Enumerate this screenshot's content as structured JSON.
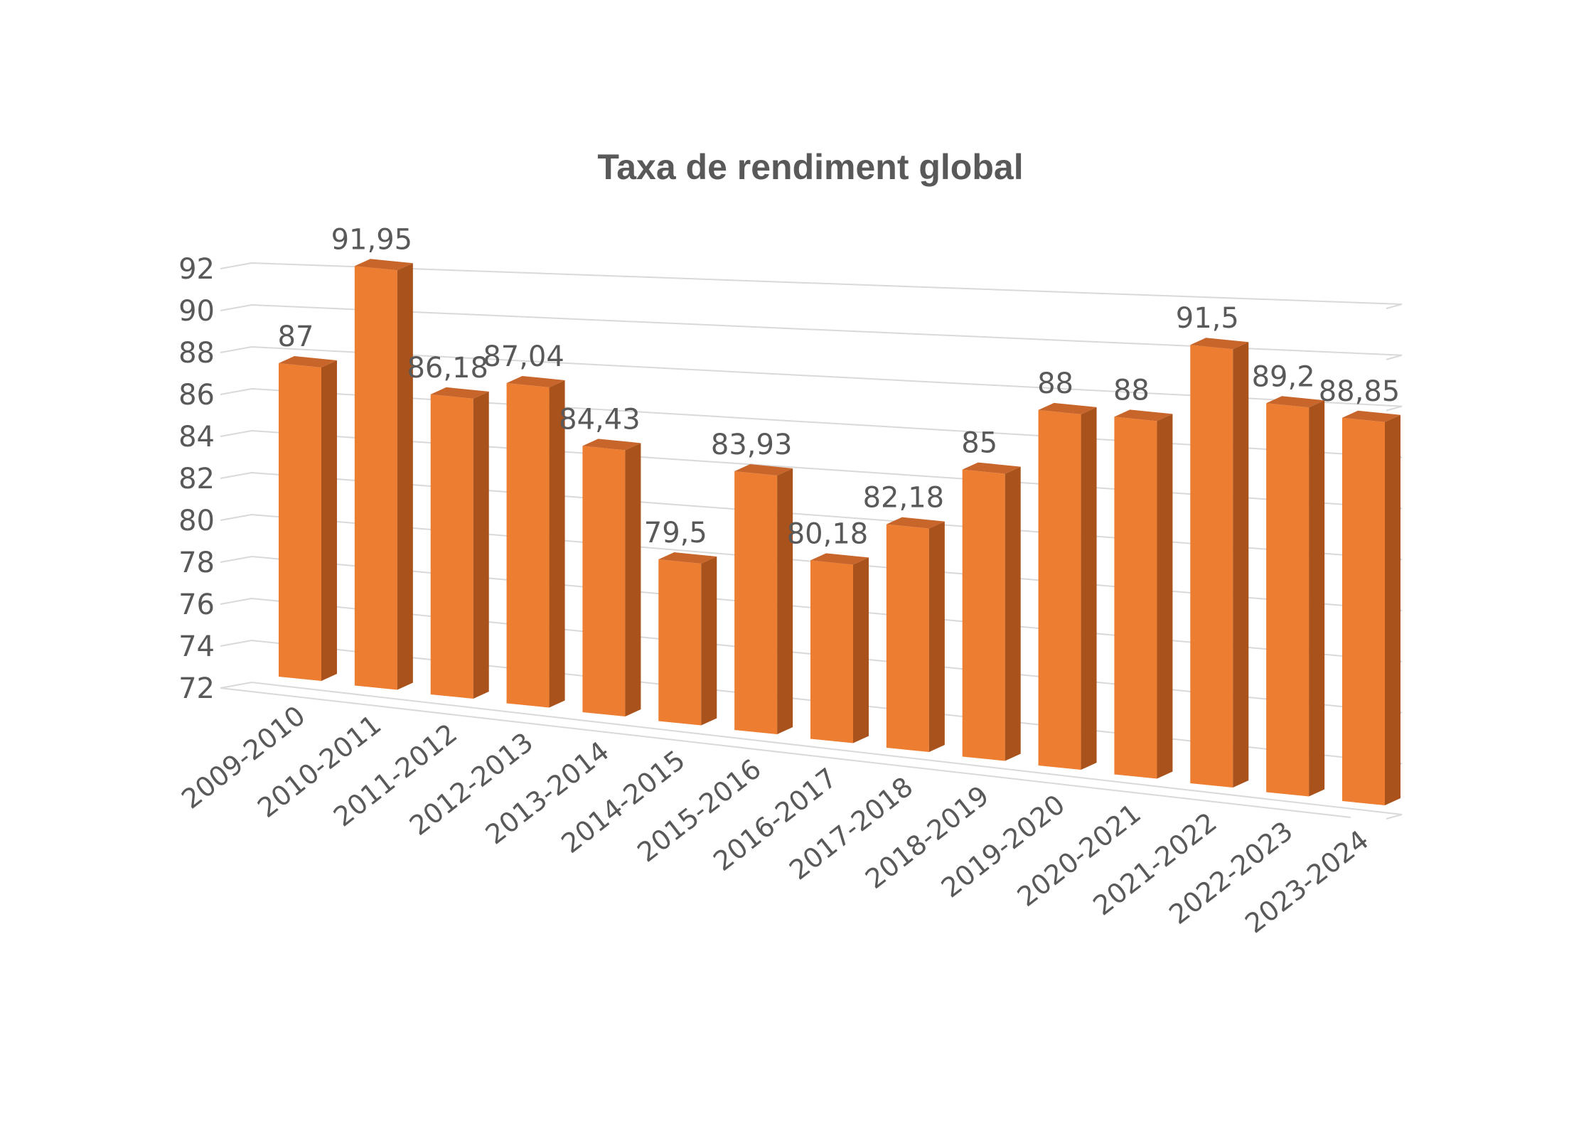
{
  "chart_data": {
    "type": "bar",
    "title": "Taxa de rendiment global",
    "categories": [
      "2009-2010",
      "2010-2011",
      "2011-2012",
      "2012-2013",
      "2013-2014",
      "2014-2015",
      "2015-2016",
      "2016-2017",
      "2017-2018",
      "2018-2019",
      "2019-2020",
      "2020-2021",
      "2021-2022",
      "2022-2023",
      "2023-2024"
    ],
    "values": [
      87,
      91.95,
      86.18,
      87.04,
      84.43,
      79.5,
      83.93,
      80.18,
      82.18,
      85,
      88,
      88,
      91.5,
      89.2,
      88.85
    ],
    "data_labels": [
      "87",
      "91,95",
      "86,18",
      "87,04",
      "84,43",
      "79,5",
      "83,93",
      "80,18",
      "82,18",
      "85",
      "88",
      "88",
      "91,5",
      "89,2",
      "88,85"
    ],
    "y_ticks": [
      "72",
      "74",
      "76",
      "78",
      "80",
      "82",
      "84",
      "86",
      "88",
      "90",
      "92"
    ],
    "ylim": [
      72,
      92
    ],
    "grid": true,
    "legend": "none",
    "three_d": true,
    "bar_color": "#ED7D31",
    "bar_side_color": "#A9521B",
    "bar_top_color": "#C8652A"
  }
}
